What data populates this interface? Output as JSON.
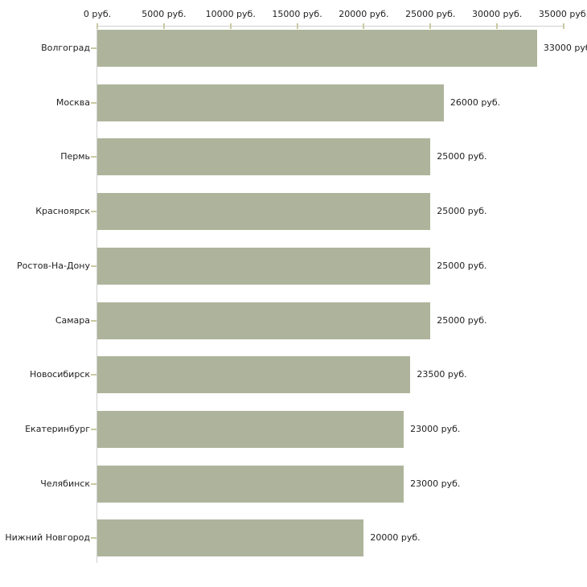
{
  "chart_data": {
    "type": "bar",
    "orientation": "horizontal",
    "title": "",
    "xlabel": "",
    "ylabel": "",
    "categories": [
      "Волгоград",
      "Москва",
      "Пермь",
      "Красноярск",
      "Ростов-На-Дону",
      "Самара",
      "Новосибирск",
      "Екатеринбург",
      "Челябинск",
      "Нижний Новгород"
    ],
    "values": [
      33000,
      26000,
      25000,
      25000,
      25000,
      25000,
      23500,
      23000,
      23000,
      20000
    ],
    "value_labels": [
      "33000 руб",
      "26000 руб.",
      "25000 руб.",
      "25000 руб.",
      "25000 руб.",
      "25000 руб.",
      "23500 руб.",
      "23000 руб.",
      "23000 руб.",
      "20000 руб."
    ],
    "x_axis": {
      "min": 0,
      "max": 35000,
      "step": 5000,
      "position": "top",
      "tick_labels": [
        "0 руб.",
        "5000 руб.",
        "10000 руб.",
        "15000 руб.",
        "20000 руб.",
        "25000 руб.",
        "30000 руб.",
        "35000 руб."
      ]
    },
    "grid": false,
    "legend": false,
    "colors": {
      "bar": "#aeb49b",
      "axis_line": "#d0d0d0",
      "tick_mark": "#c9caa2",
      "text": "#222222",
      "background": "#ffffff"
    }
  }
}
